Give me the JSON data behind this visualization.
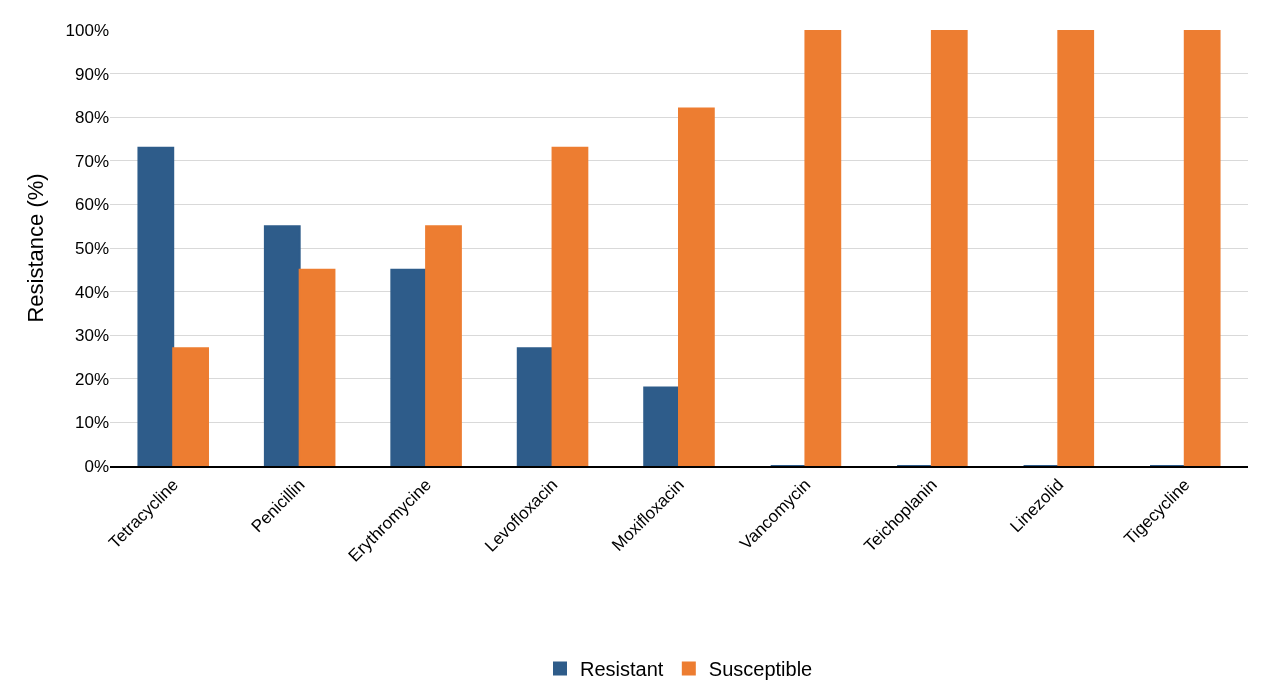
{
  "chart_data": {
    "type": "bar",
    "ylabel": "Resistance (%)",
    "categories": [
      "Tetracycline",
      "Penicillin",
      "Erythromycine",
      "Levofloxacin",
      "Moxifloxacin",
      "Vancomycin",
      "Teichoplanin",
      "Linezolid",
      "Tigecycline"
    ],
    "series": [
      {
        "name": "Resistant",
        "color": "#2e5c8a",
        "values": [
          73,
          55,
          45,
          27,
          18,
          0,
          0,
          0,
          0
        ]
      },
      {
        "name": "Susceptible",
        "color": "#ed7d31",
        "values": [
          27,
          45,
          55,
          73,
          82,
          100,
          100,
          100,
          100
        ]
      }
    ],
    "ylim": [
      0,
      100
    ],
    "yticks": [
      {
        "value": 0,
        "label": "0%"
      },
      {
        "value": 10,
        "label": "10%"
      },
      {
        "value": 20,
        "label": "20%"
      },
      {
        "value": 30,
        "label": "30%"
      },
      {
        "value": 40,
        "label": "40%"
      },
      {
        "value": 50,
        "label": "50%"
      },
      {
        "value": 60,
        "label": "60%"
      },
      {
        "value": 70,
        "label": "70%"
      },
      {
        "value": 80,
        "label": "80%"
      },
      {
        "value": 90,
        "label": "90%"
      },
      {
        "value": 100,
        "label": "100%"
      }
    ],
    "grid": "y",
    "legend": "bottom"
  }
}
